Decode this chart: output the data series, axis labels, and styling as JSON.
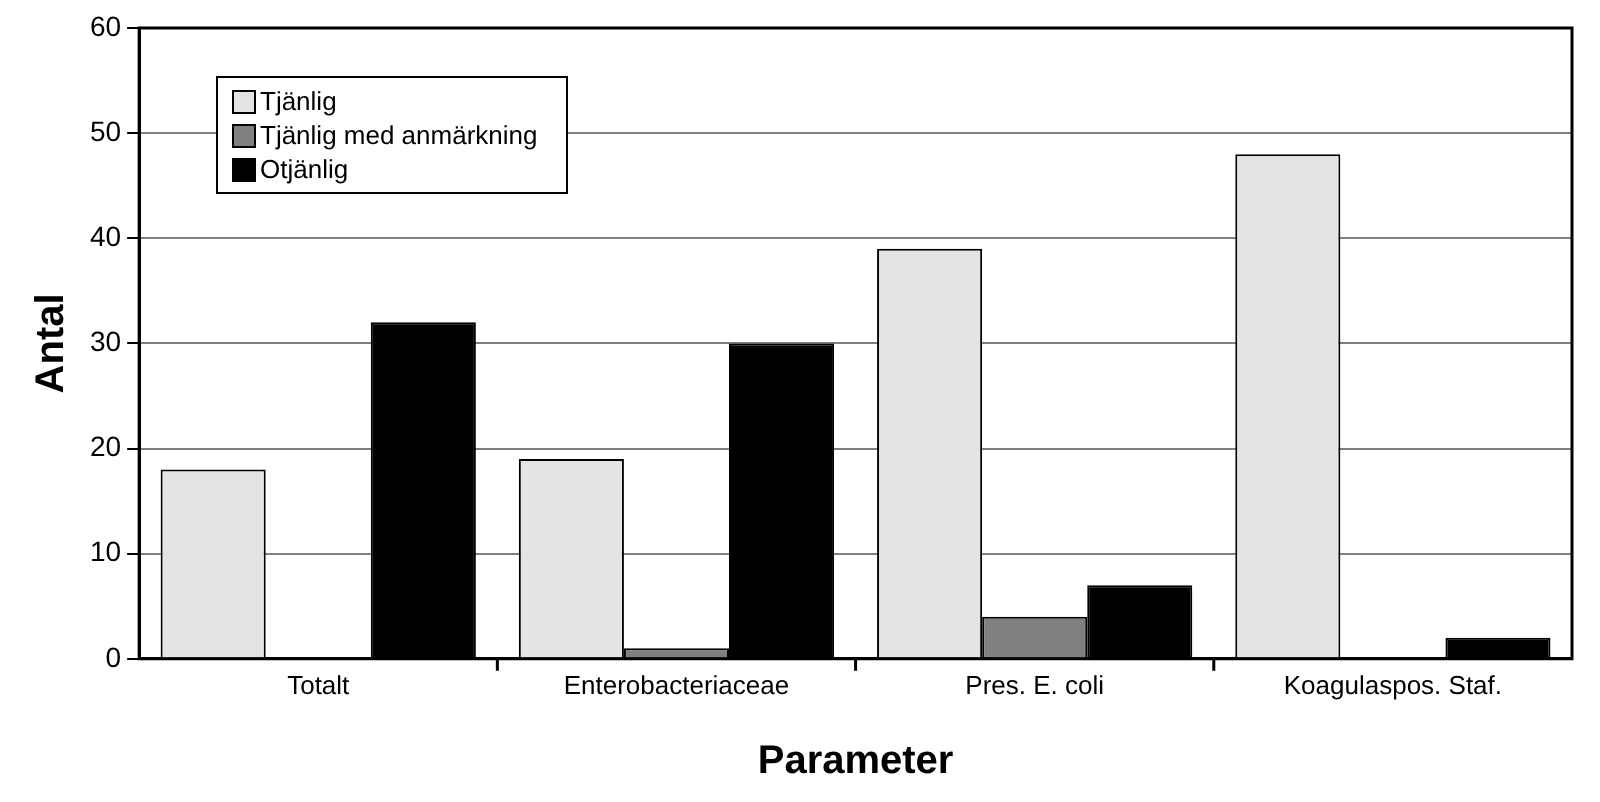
{
  "chart_data": {
    "type": "bar",
    "xlabel": "Parameter",
    "ylabel": "Antal",
    "categories": [
      "Totalt",
      "Enterobacteriaceae",
      "Pres. E. coli",
      "Koagulaspos. Staf."
    ],
    "series": [
      {
        "name": "Tjänlig",
        "color": "#e4e4e4",
        "values": [
          18,
          19,
          39,
          48
        ]
      },
      {
        "name": "Tjänlig med anmärkning",
        "color": "#808080",
        "values": [
          0,
          1,
          4,
          0
        ]
      },
      {
        "name": "Otjänlig",
        "color": "#000000",
        "values": [
          32,
          30,
          7,
          2
        ]
      }
    ],
    "ylim": [
      0,
      60
    ],
    "yticks": [
      0,
      10,
      20,
      30,
      40,
      50,
      60
    ],
    "grid": "y",
    "legend": "top left"
  }
}
